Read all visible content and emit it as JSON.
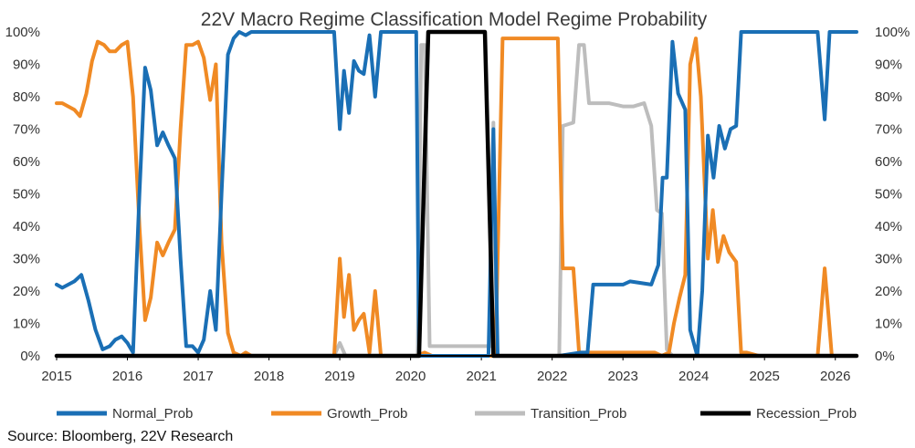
{
  "chart_data": {
    "type": "line",
    "title": "22V Macro Regime Classification Model  Regime Probability",
    "source": "Source: Bloomberg, 22V Research",
    "x_ticks": [
      "2015",
      "2016",
      "2017",
      "2018",
      "2019",
      "2020",
      "2021",
      "2022",
      "2023",
      "2024",
      "2025",
      "2026"
    ],
    "xlim": [
      2015.0,
      2026.3
    ],
    "y_ticks_left": [
      "0%",
      "10%",
      "20%",
      "30%",
      "40%",
      "50%",
      "60%",
      "70%",
      "80%",
      "90%",
      "100%"
    ],
    "y_ticks_right": [
      "0%",
      "10%",
      "20%",
      "30%",
      "40%",
      "50%",
      "60%",
      "70%",
      "80%",
      "90%",
      "100%"
    ],
    "ylim": [
      0,
      100
    ],
    "colors": {
      "Normal_Prob": "#1a6fb5",
      "Growth_Prob": "#f08a24",
      "Transition_Prob": "#bdbdbd",
      "Recession_Prob": "#000000",
      "axis": "#000000"
    },
    "series": [
      {
        "name": "Normal_Prob",
        "points": [
          [
            2015.0,
            22
          ],
          [
            2015.08,
            21
          ],
          [
            2015.25,
            23
          ],
          [
            2015.35,
            25
          ],
          [
            2015.45,
            17
          ],
          [
            2015.55,
            8
          ],
          [
            2015.65,
            2
          ],
          [
            2015.75,
            3
          ],
          [
            2015.83,
            5
          ],
          [
            2015.92,
            6
          ],
          [
            2016.0,
            4
          ],
          [
            2016.08,
            1
          ],
          [
            2016.17,
            50
          ],
          [
            2016.25,
            89
          ],
          [
            2016.33,
            82
          ],
          [
            2016.42,
            65
          ],
          [
            2016.5,
            69
          ],
          [
            2016.58,
            65
          ],
          [
            2016.67,
            61
          ],
          [
            2016.75,
            30
          ],
          [
            2016.83,
            3
          ],
          [
            2016.92,
            3
          ],
          [
            2017.0,
            1
          ],
          [
            2017.08,
            5
          ],
          [
            2017.17,
            20
          ],
          [
            2017.25,
            8
          ],
          [
            2017.33,
            50
          ],
          [
            2017.42,
            93
          ],
          [
            2017.5,
            98
          ],
          [
            2017.58,
            100
          ],
          [
            2017.67,
            99
          ],
          [
            2017.75,
            100
          ],
          [
            2018.0,
            100
          ],
          [
            2018.5,
            100
          ],
          [
            2018.92,
            100
          ],
          [
            2019.0,
            70
          ],
          [
            2019.06,
            88
          ],
          [
            2019.13,
            75
          ],
          [
            2019.2,
            91
          ],
          [
            2019.27,
            88
          ],
          [
            2019.34,
            87
          ],
          [
            2019.42,
            99
          ],
          [
            2019.5,
            80
          ],
          [
            2019.58,
            100
          ],
          [
            2020.08,
            100
          ],
          [
            2020.12,
            0
          ],
          [
            2020.17,
            0
          ],
          [
            2021.1,
            0
          ],
          [
            2021.17,
            70
          ],
          [
            2021.23,
            0
          ],
          [
            2021.5,
            0
          ],
          [
            2022.0,
            0
          ],
          [
            2022.1,
            0
          ],
          [
            2022.4,
            1
          ],
          [
            2022.5,
            1
          ],
          [
            2022.58,
            22
          ],
          [
            2022.8,
            22
          ],
          [
            2023.0,
            22
          ],
          [
            2023.1,
            23
          ],
          [
            2023.4,
            22
          ],
          [
            2023.5,
            28
          ],
          [
            2023.56,
            55
          ],
          [
            2023.62,
            55
          ],
          [
            2023.7,
            97
          ],
          [
            2023.78,
            81
          ],
          [
            2023.88,
            76
          ],
          [
            2023.95,
            8
          ],
          [
            2024.05,
            0
          ],
          [
            2024.12,
            20
          ],
          [
            2024.2,
            68
          ],
          [
            2024.28,
            55
          ],
          [
            2024.36,
            71
          ],
          [
            2024.44,
            64
          ],
          [
            2024.52,
            70
          ],
          [
            2024.6,
            71
          ],
          [
            2024.67,
            100
          ],
          [
            2024.75,
            100
          ],
          [
            2025.0,
            100
          ],
          [
            2025.5,
            100
          ],
          [
            2025.75,
            100
          ],
          [
            2025.85,
            73
          ],
          [
            2025.92,
            100
          ],
          [
            2026.3,
            100
          ]
        ]
      },
      {
        "name": "Growth_Prob",
        "points": [
          [
            2015.0,
            78
          ],
          [
            2015.08,
            78
          ],
          [
            2015.25,
            76
          ],
          [
            2015.33,
            74
          ],
          [
            2015.42,
            81
          ],
          [
            2015.5,
            91
          ],
          [
            2015.58,
            97
          ],
          [
            2015.67,
            96
          ],
          [
            2015.75,
            94
          ],
          [
            2015.83,
            94
          ],
          [
            2015.92,
            96
          ],
          [
            2016.0,
            97
          ],
          [
            2016.08,
            80
          ],
          [
            2016.17,
            40
          ],
          [
            2016.25,
            11
          ],
          [
            2016.33,
            18
          ],
          [
            2016.42,
            35
          ],
          [
            2016.5,
            31
          ],
          [
            2016.58,
            35
          ],
          [
            2016.67,
            39
          ],
          [
            2016.75,
            70
          ],
          [
            2016.83,
            96
          ],
          [
            2016.92,
            96
          ],
          [
            2017.0,
            97
          ],
          [
            2017.08,
            92
          ],
          [
            2017.17,
            79
          ],
          [
            2017.25,
            90
          ],
          [
            2017.33,
            35
          ],
          [
            2017.42,
            7
          ],
          [
            2017.5,
            1
          ],
          [
            2017.6,
            0
          ],
          [
            2017.67,
            1
          ],
          [
            2017.75,
            0
          ],
          [
            2018.0,
            0
          ],
          [
            2018.92,
            0
          ],
          [
            2019.0,
            30
          ],
          [
            2019.06,
            12
          ],
          [
            2019.13,
            25
          ],
          [
            2019.2,
            8
          ],
          [
            2019.27,
            11
          ],
          [
            2019.34,
            13
          ],
          [
            2019.42,
            1
          ],
          [
            2019.5,
            20
          ],
          [
            2019.58,
            0
          ],
          [
            2020.08,
            0
          ],
          [
            2020.2,
            1
          ],
          [
            2020.3,
            0
          ],
          [
            2021.1,
            0
          ],
          [
            2021.2,
            0
          ],
          [
            2021.3,
            98
          ],
          [
            2021.5,
            98
          ],
          [
            2022.0,
            98
          ],
          [
            2022.08,
            98
          ],
          [
            2022.15,
            27
          ],
          [
            2022.3,
            27
          ],
          [
            2022.38,
            1
          ],
          [
            2022.6,
            1
          ],
          [
            2023.0,
            1
          ],
          [
            2023.2,
            1
          ],
          [
            2023.35,
            1
          ],
          [
            2023.45,
            1
          ],
          [
            2023.55,
            0
          ],
          [
            2023.65,
            1
          ],
          [
            2023.72,
            10
          ],
          [
            2023.8,
            18
          ],
          [
            2023.88,
            25
          ],
          [
            2023.95,
            90
          ],
          [
            2024.03,
            98
          ],
          [
            2024.1,
            80
          ],
          [
            2024.2,
            30
          ],
          [
            2024.27,
            45
          ],
          [
            2024.34,
            29
          ],
          [
            2024.42,
            37
          ],
          [
            2024.5,
            32
          ],
          [
            2024.6,
            29
          ],
          [
            2024.67,
            1
          ],
          [
            2024.75,
            1
          ],
          [
            2024.92,
            0
          ],
          [
            2025.0,
            0
          ],
          [
            2025.5,
            0
          ],
          [
            2025.75,
            0
          ],
          [
            2025.85,
            27
          ],
          [
            2025.95,
            0
          ],
          [
            2026.3,
            0
          ]
        ]
      },
      {
        "name": "Transition_Prob",
        "points": [
          [
            2015.0,
            0
          ],
          [
            2018.92,
            0
          ],
          [
            2019.0,
            4
          ],
          [
            2019.08,
            0
          ],
          [
            2020.1,
            0
          ],
          [
            2020.15,
            96
          ],
          [
            2020.2,
            96
          ],
          [
            2020.27,
            3
          ],
          [
            2020.4,
            3
          ],
          [
            2021.0,
            3
          ],
          [
            2021.08,
            3
          ],
          [
            2021.13,
            3
          ],
          [
            2021.17,
            72
          ],
          [
            2021.22,
            0
          ],
          [
            2022.05,
            0
          ],
          [
            2022.1,
            0
          ],
          [
            2022.15,
            71
          ],
          [
            2022.3,
            72
          ],
          [
            2022.38,
            96
          ],
          [
            2022.45,
            96
          ],
          [
            2022.52,
            78
          ],
          [
            2022.8,
            78
          ],
          [
            2023.0,
            77
          ],
          [
            2023.15,
            77
          ],
          [
            2023.3,
            78
          ],
          [
            2023.4,
            71
          ],
          [
            2023.48,
            45
          ],
          [
            2023.55,
            44
          ],
          [
            2023.62,
            2
          ],
          [
            2023.7,
            0
          ],
          [
            2026.3,
            0
          ]
        ]
      },
      {
        "name": "Recession_Prob",
        "points": [
          [
            2015.0,
            0
          ],
          [
            2020.12,
            0
          ],
          [
            2020.25,
            100
          ],
          [
            2021.05,
            100
          ],
          [
            2021.17,
            0
          ],
          [
            2026.3,
            0
          ]
        ]
      }
    ],
    "legend": [
      "Normal_Prob",
      "Growth_Prob",
      "Transition_Prob",
      "Recession_Prob"
    ],
    "legend_placement": "bottom",
    "grid": false
  }
}
